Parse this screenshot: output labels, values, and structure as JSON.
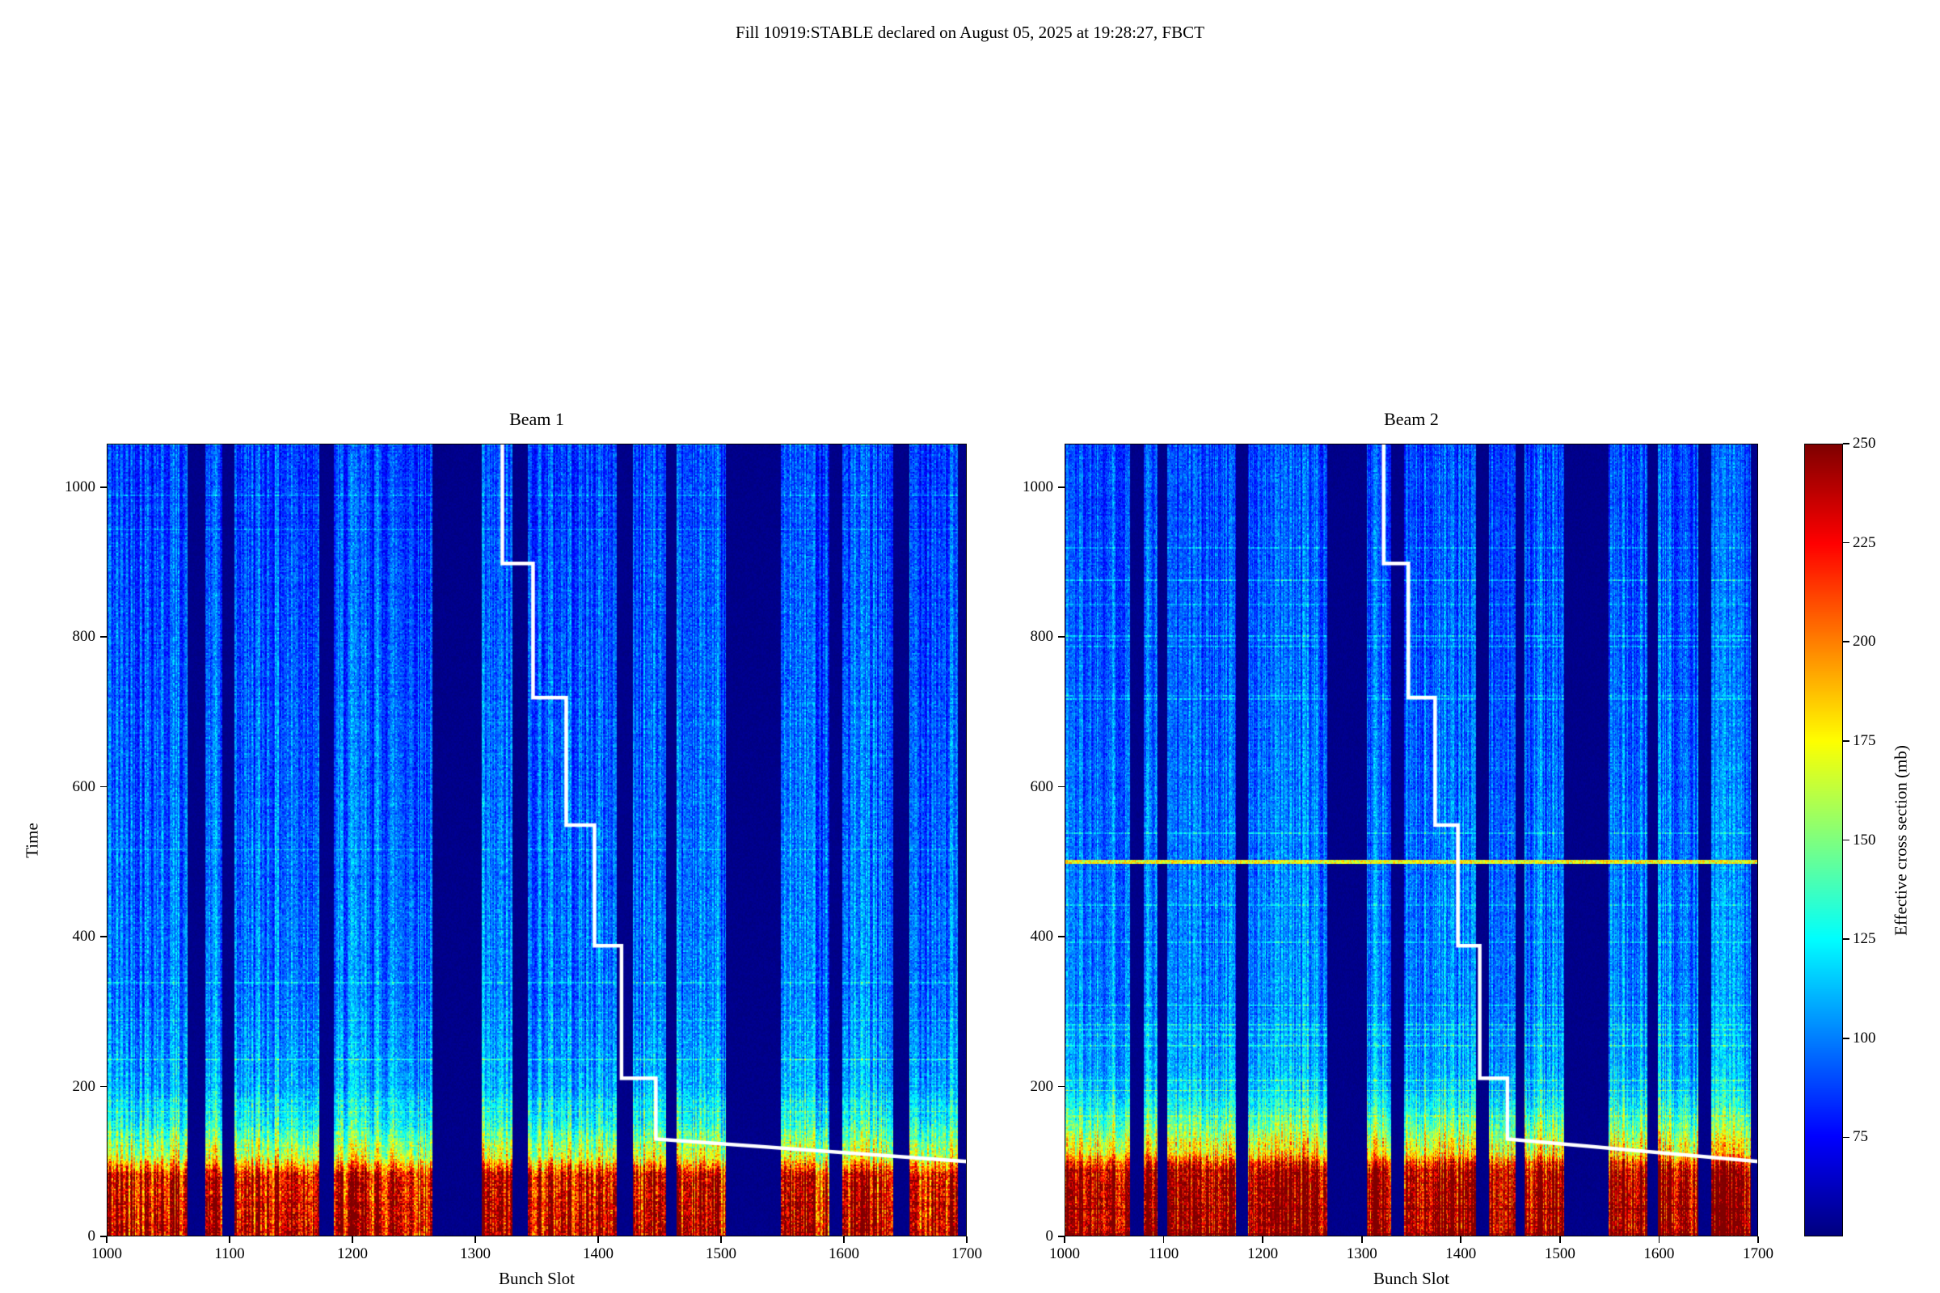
{
  "chart_data": {
    "type": "heatmap",
    "figure_title": "Fill 10919:STABLE declared on August 05, 2025 at 19:28:27, FBCT",
    "panels": [
      {
        "title": "Beam 1",
        "seed": 42,
        "time_profile": [
          [
            0,
            240
          ],
          [
            80,
            234
          ],
          [
            105,
            170
          ],
          [
            150,
            132
          ],
          [
            200,
            110
          ],
          [
            320,
            100
          ],
          [
            700,
            94
          ],
          [
            1058,
            88
          ]
        ]
      },
      {
        "title": "Beam 2",
        "seed": 1337,
        "horizontal_streak_time": 500,
        "time_profile": [
          [
            0,
            255
          ],
          [
            88,
            246
          ],
          [
            112,
            180
          ],
          [
            158,
            138
          ],
          [
            210,
            112
          ],
          [
            320,
            103
          ],
          [
            700,
            96
          ],
          [
            1058,
            90
          ]
        ]
      }
    ],
    "xlabel": "Bunch Slot",
    "ylabel": "Time",
    "xlim": [
      1000,
      1700
    ],
    "ylim": [
      0,
      1058
    ],
    "x_ticks": [
      1000,
      1100,
      1200,
      1300,
      1400,
      1500,
      1600,
      1700
    ],
    "y_ticks": [
      0,
      200,
      400,
      600,
      800,
      1000
    ],
    "colormap": "jet",
    "vmin": 50,
    "vmax": 250,
    "colorbar": {
      "label": "Effective cross section (mb)",
      "ticks": [
        75,
        100,
        125,
        150,
        175,
        200,
        225,
        250
      ]
    },
    "abort_gaps_bunch_slots": [
      [
        1066,
        1079
      ],
      [
        1094,
        1103
      ],
      [
        1173,
        1184
      ],
      [
        1265,
        1304
      ],
      [
        1330,
        1342
      ],
      [
        1415,
        1427
      ],
      [
        1455,
        1463
      ],
      [
        1504,
        1548
      ],
      [
        1588,
        1598
      ],
      [
        1640,
        1652
      ],
      [
        1693,
        1700
      ]
    ],
    "overlay_line": {
      "color": "#ffffff",
      "points": [
        [
          1322,
          1058
        ],
        [
          1322,
          898
        ],
        [
          1347,
          898
        ],
        [
          1347,
          719
        ],
        [
          1374,
          719
        ],
        [
          1374,
          549
        ],
        [
          1397,
          549
        ],
        [
          1397,
          388
        ],
        [
          1419,
          388
        ],
        [
          1419,
          211
        ],
        [
          1447,
          211
        ],
        [
          1447,
          130
        ],
        [
          1700,
          100
        ]
      ]
    }
  }
}
